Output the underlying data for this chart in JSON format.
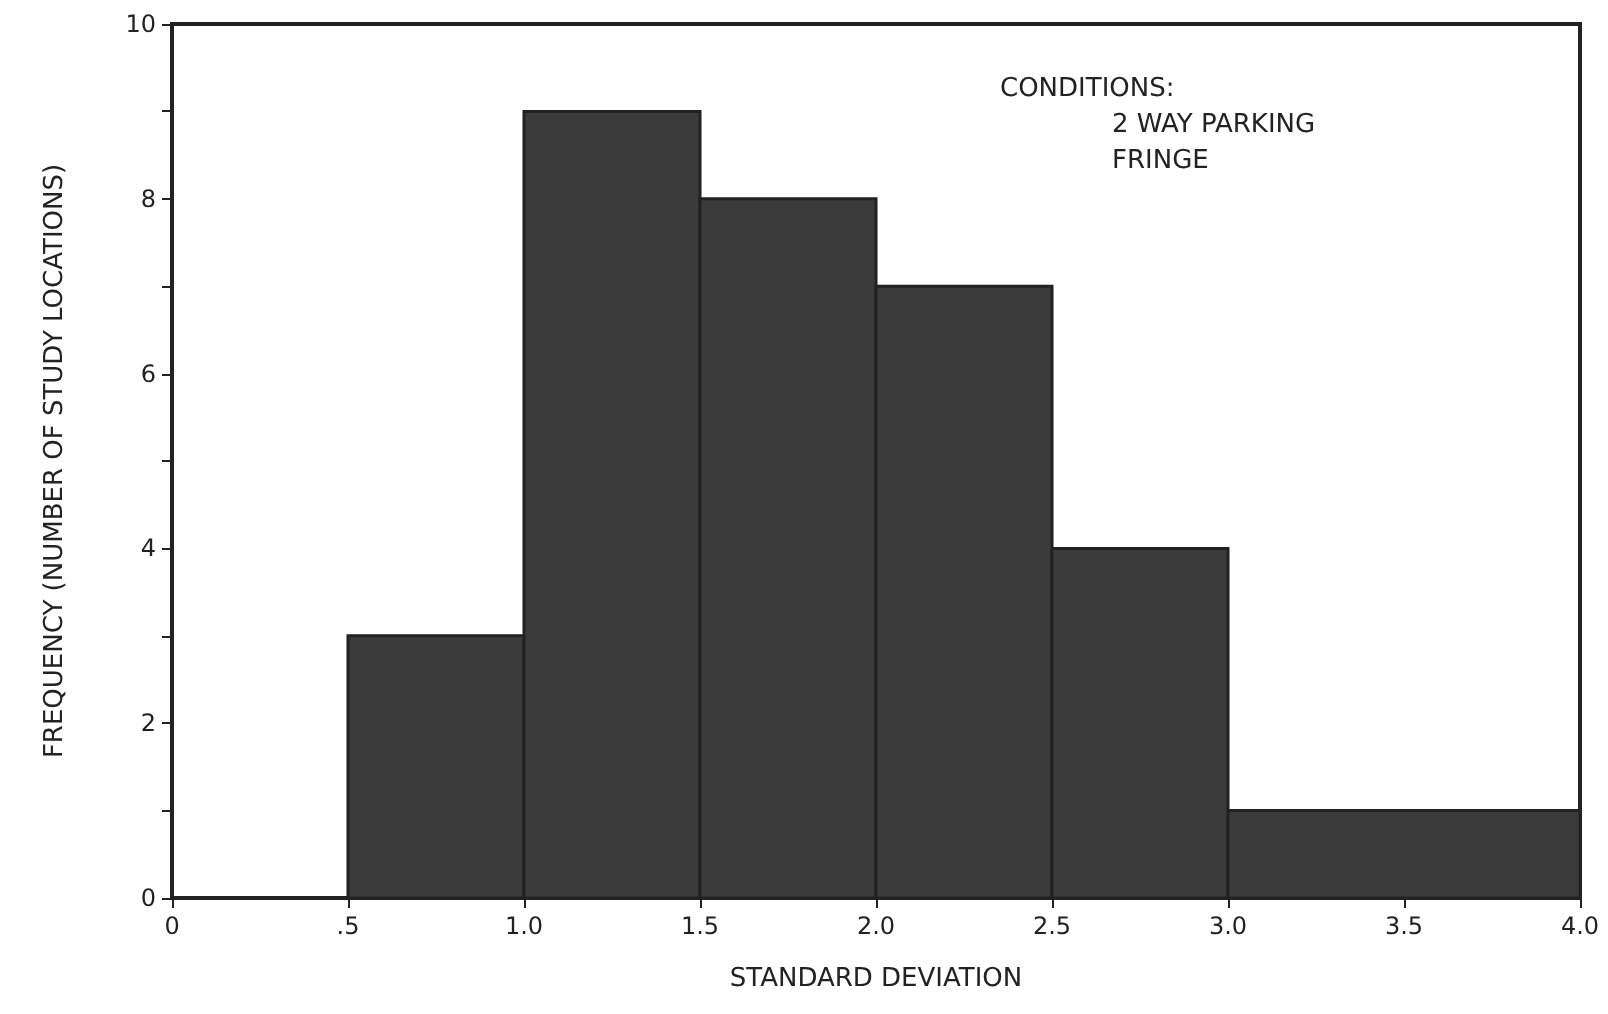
{
  "chart_data": {
    "type": "histogram",
    "xlabel": "STANDARD DEVIATION",
    "ylabel": "FREQUENCY (NUMBER OF STUDY LOCATIONS)",
    "bins": [
      0.5,
      1.0,
      1.5,
      2.0,
      2.5,
      3.0,
      4.0
    ],
    "values": [
      3,
      9,
      8,
      7,
      4,
      1
    ],
    "color": "#3b3b3b",
    "xlim": [
      0,
      4
    ],
    "xticks": [
      0,
      {
        "value": 0.5,
        "label": ".5"
      },
      {
        "value": 1,
        "label": "1.0"
      },
      1.5,
      {
        "value": 2,
        "label": "2.0"
      },
      2.5,
      {
        "value": 3,
        "label": "3.0"
      },
      3.5,
      {
        "value": 4,
        "label": "4.0"
      }
    ],
    "ylim": [
      0,
      10
    ],
    "yticks": [
      0,
      {
        "value": 1,
        "label": null
      },
      2,
      {
        "value": 3,
        "label": null
      },
      4,
      {
        "value": 5,
        "label": null
      },
      6,
      {
        "value": 7,
        "label": null
      },
      8,
      {
        "value": 9,
        "label": null
      },
      10
    ],
    "annotations": [
      "CONDITIONS:",
      "2 WAY PARKING",
      "FRINGE"
    ],
    "grid": false
  }
}
